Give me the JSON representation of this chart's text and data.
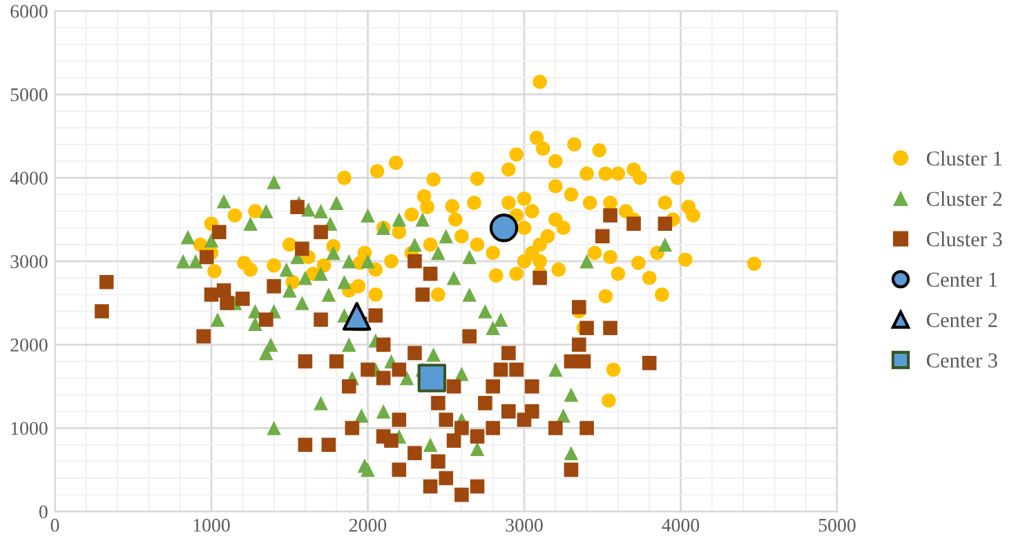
{
  "chart_data": {
    "type": "scatter",
    "xlim": [
      0,
      5000
    ],
    "ylim": [
      0,
      6000
    ],
    "xticks": [
      0,
      1000,
      2000,
      3000,
      4000,
      5000
    ],
    "yticks": [
      0,
      1000,
      2000,
      3000,
      4000,
      5000,
      6000
    ],
    "grid": true,
    "legend": "right",
    "series": [
      {
        "name": "Cluster 1",
        "color": "#ffc000",
        "marker": "circle",
        "x": [
          3100,
          2950,
          3080,
          3120,
          3320,
          3480,
          3200,
          2900,
          2700,
          2180,
          2060,
          1850,
          2420,
          2680,
          2540,
          2360,
          2380,
          2280,
          3740,
          3520,
          3600,
          3700,
          3980,
          3400,
          3300,
          3200,
          3420,
          3550,
          3650,
          3700,
          3900,
          3950,
          4050,
          4080,
          4470,
          4030,
          3850,
          3730,
          3550,
          3450,
          3600,
          3800,
          3880,
          3520,
          3570,
          3540,
          3380,
          3350,
          3220,
          3100,
          2950,
          2820,
          3000,
          3050,
          3100,
          3150,
          3000,
          2950,
          2900,
          3000,
          3050,
          3200,
          3250,
          3100,
          2800,
          2700,
          2600,
          2560,
          2400,
          2200,
          2450,
          2280,
          2150,
          2100,
          1980,
          1940,
          1950,
          1780,
          1620,
          1500,
          1400,
          1280,
          1150,
          1000,
          1000,
          930,
          1210,
          1020,
          1250,
          1520,
          1650,
          1720,
          1880,
          2050,
          2050
        ],
        "values": [
          5150,
          4280,
          4480,
          4350,
          4400,
          4330,
          4200,
          4100,
          3990,
          4180,
          4080,
          4000,
          3980,
          3700,
          3660,
          3780,
          3650,
          3560,
          4000,
          4050,
          4050,
          4100,
          4000,
          4050,
          3800,
          3900,
          3700,
          3700,
          3600,
          3500,
          3700,
          3500,
          3650,
          3550,
          2970,
          3020,
          3100,
          2980,
          3050,
          3100,
          2850,
          2800,
          2600,
          2580,
          1700,
          1330,
          2200,
          2400,
          2900,
          2850,
          2850,
          2830,
          3000,
          3100,
          3200,
          3300,
          3400,
          3550,
          3700,
          3750,
          3600,
          3500,
          3400,
          3000,
          3100,
          3200,
          3300,
          3500,
          3200,
          3350,
          2600,
          3100,
          3000,
          3400,
          3100,
          2700,
          2980,
          3180,
          3050,
          3200,
          2950,
          3600,
          3550,
          3450,
          3100,
          3200,
          2980,
          2880,
          2900,
          2750,
          2850,
          2950,
          2650,
          2900,
          2600
        ]
      },
      {
        "name": "Cluster 2",
        "color": "#70ad47",
        "marker": "triangle",
        "x": [
          1400,
          1080,
          850,
          820,
          900,
          1000,
          1250,
          1350,
          1560,
          1620,
          1700,
          1800,
          1760,
          2000,
          2100,
          2200,
          2350,
          2500,
          2450,
          2300,
          2650,
          2000,
          1880,
          1780,
          1550,
          1480,
          1600,
          1700,
          1750,
          1850,
          1500,
          1580,
          1400,
          1280,
          1150,
          1040,
          1280,
          1380,
          1350,
          1850,
          1880,
          2050,
          2050,
          1900,
          2150,
          2250,
          2350,
          2420,
          2600,
          2800,
          2650,
          2750,
          2850,
          3200,
          3300,
          3250,
          2100,
          1700,
          1960,
          1980,
          2000,
          2200,
          2400,
          2600,
          2700,
          1400,
          3300,
          3400,
          3900,
          2550
        ],
        "values": [
          3950,
          3720,
          3290,
          3000,
          3000,
          3250,
          3450,
          3600,
          3700,
          3620,
          3600,
          3700,
          3450,
          3550,
          3400,
          3500,
          3500,
          3300,
          3100,
          3200,
          3050,
          3000,
          3000,
          3100,
          3050,
          2900,
          2800,
          2850,
          2600,
          2750,
          2650,
          2500,
          2400,
          2400,
          2500,
          2300,
          2250,
          2000,
          1900,
          2350,
          2000,
          2050,
          1700,
          1600,
          1800,
          1600,
          1700,
          1880,
          1650,
          2200,
          2600,
          2400,
          2300,
          1700,
          1400,
          1150,
          1200,
          1300,
          1150,
          550,
          500,
          900,
          800,
          1100,
          750,
          1000,
          700,
          3000,
          3200,
          2800
        ]
      },
      {
        "name": "Cluster 3",
        "color": "#9e480e",
        "marker": "square",
        "x": [
          300,
          330,
          950,
          1080,
          1000,
          1100,
          1200,
          1050,
          970,
          1400,
          1350,
          1550,
          1580,
          1700,
          1950,
          2050,
          1600,
          1700,
          1800,
          1880,
          1750,
          1600,
          1900,
          2000,
          2100,
          2100,
          2200,
          2300,
          2350,
          2400,
          2300,
          2650,
          2450,
          2550,
          2500,
          2600,
          2700,
          2800,
          2750,
          2900,
          3000,
          3050,
          2950,
          2900,
          3300,
          3350,
          3400,
          3350,
          3550,
          3050,
          3200,
          2100,
          2200,
          2300,
          2400,
          2500,
          2600,
          2700,
          2200,
          2150,
          2450,
          2550,
          3300,
          3400,
          3500,
          3550,
          3700,
          3900,
          3800,
          3380,
          2800,
          2850,
          3100
        ],
        "values": [
          2400,
          2750,
          2100,
          2650,
          2600,
          2500,
          2550,
          3350,
          3050,
          2700,
          2300,
          3650,
          3150,
          3350,
          2250,
          2350,
          1800,
          2300,
          1800,
          1500,
          800,
          800,
          1000,
          1700,
          1600,
          2000,
          1700,
          1900,
          2600,
          2850,
          3000,
          2100,
          1300,
          1500,
          1100,
          1000,
          900,
          1000,
          1300,
          1200,
          1100,
          1500,
          1700,
          1900,
          1800,
          2000,
          2200,
          2450,
          2200,
          1200,
          1000,
          900,
          1100,
          700,
          300,
          400,
          200,
          300,
          500,
          850,
          600,
          850,
          500,
          1000,
          3300,
          3550,
          3450,
          3450,
          1780,
          1800,
          1500,
          1700,
          2800
        ]
      },
      {
        "name": "Center 1",
        "color": "#5b9bd5",
        "marker": "circle",
        "x": [
          2870
        ],
        "values": [
          3400
        ]
      },
      {
        "name": "Center 2",
        "color": "#5b9bd5",
        "marker": "triangle",
        "x": [
          1930
        ],
        "values": [
          2340
        ]
      },
      {
        "name": "Center 3",
        "color": "#5b9bd5",
        "marker": "square",
        "x": [
          2410
        ],
        "values": [
          1600
        ]
      }
    ]
  }
}
